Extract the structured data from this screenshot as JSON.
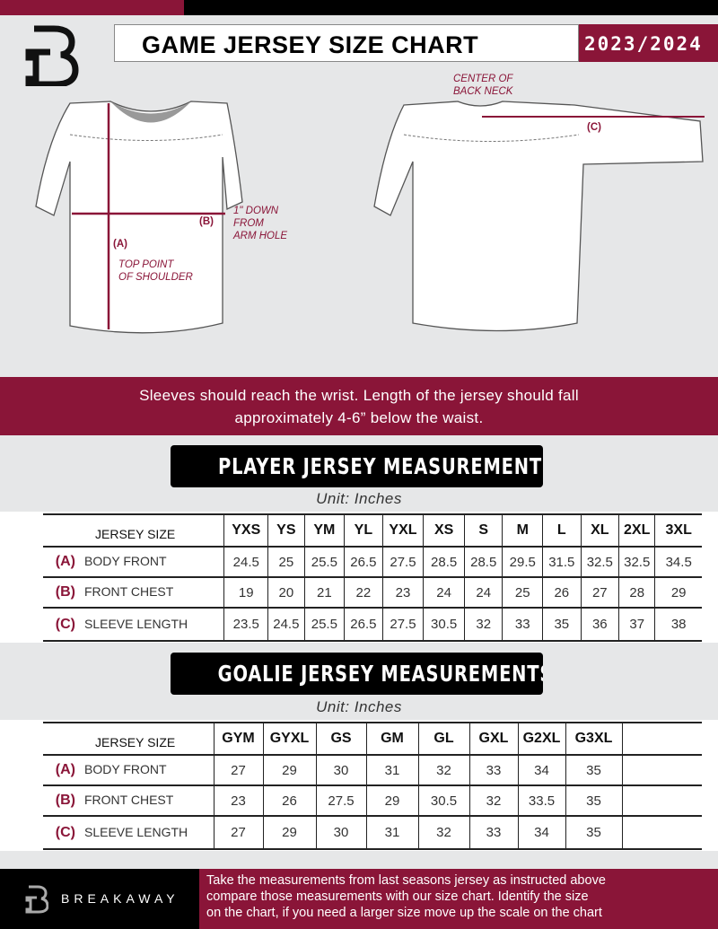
{
  "header": {
    "title": "GAME JERSEY SIZE CHART",
    "season": "2023/2024"
  },
  "diagram": {
    "back_neck_note": [
      "CENTER OF",
      "BACK NECK"
    ],
    "label_a": "(A)",
    "label_b": "(B)",
    "label_c": "(C)",
    "b_note": [
      "1\" DOWN",
      "FROM",
      "ARM HOLE"
    ],
    "a_note": [
      "TOP POINT",
      "OF SHOULDER"
    ]
  },
  "instructions": [
    "Sleeves should reach the wrist. Length of the jersey should fall",
    "approximately 4-6” below the waist."
  ],
  "player": {
    "title": "PLAYER JERSEY MEASUREMENTS",
    "unit": "Unit: Inches",
    "header_label": "JERSEY SIZE",
    "sizes": [
      "YXS",
      "YS",
      "YM",
      "YL",
      "YXL",
      "XS",
      "S",
      "M",
      "L",
      "XL",
      "2XL",
      "3XL"
    ],
    "rows": [
      {
        "letter": "(A)",
        "label": "BODY FRONT",
        "values": [
          "24.5",
          "25",
          "25.5",
          "26.5",
          "27.5",
          "28.5",
          "28.5",
          "29.5",
          "31.5",
          "32.5",
          "32.5",
          "34.5"
        ]
      },
      {
        "letter": "(B)",
        "label": "FRONT CHEST",
        "values": [
          "19",
          "20",
          "21",
          "22",
          "23",
          "24",
          "24",
          "25",
          "26",
          "27",
          "28",
          "29"
        ]
      },
      {
        "letter": "(C)",
        "label": "SLEEVE LENGTH",
        "values": [
          "23.5",
          "24.5",
          "25.5",
          "26.5",
          "27.5",
          "30.5",
          "32",
          "33",
          "35",
          "36",
          "37",
          "38"
        ]
      }
    ]
  },
  "goalie": {
    "title": "GOALIE JERSEY MEASUREMENTS",
    "unit": "Unit: Inches",
    "header_label": "JERSEY SIZE",
    "sizes": [
      "GYM",
      "GYXL",
      "GS",
      "GM",
      "GL",
      "GXL",
      "G2XL",
      "G3XL",
      ""
    ],
    "rows": [
      {
        "letter": "(A)",
        "label": "BODY FRONT",
        "values": [
          "27",
          "29",
          "30",
          "31",
          "32",
          "33",
          "34",
          "35",
          ""
        ]
      },
      {
        "letter": "(B)",
        "label": "FRONT CHEST",
        "values": [
          "23",
          "26",
          "27.5",
          "29",
          "30.5",
          "32",
          "33.5",
          "35",
          ""
        ]
      },
      {
        "letter": "(C)",
        "label": "SLEEVE LENGTH",
        "values": [
          "27",
          "29",
          "30",
          "31",
          "32",
          "33",
          "34",
          "35",
          ""
        ]
      }
    ]
  },
  "footer": {
    "brand": "BREAKAWAY",
    "text": [
      "Take the measurements from last seasons jersey as instructed above",
      "compare those measurements  with our size chart. Identify the size",
      "on the chart, if you need a larger size move up the scale on the chart"
    ]
  },
  "colors": {
    "accent": "#8a1538",
    "dark": "#000000",
    "background": "#e6e7e8"
  }
}
